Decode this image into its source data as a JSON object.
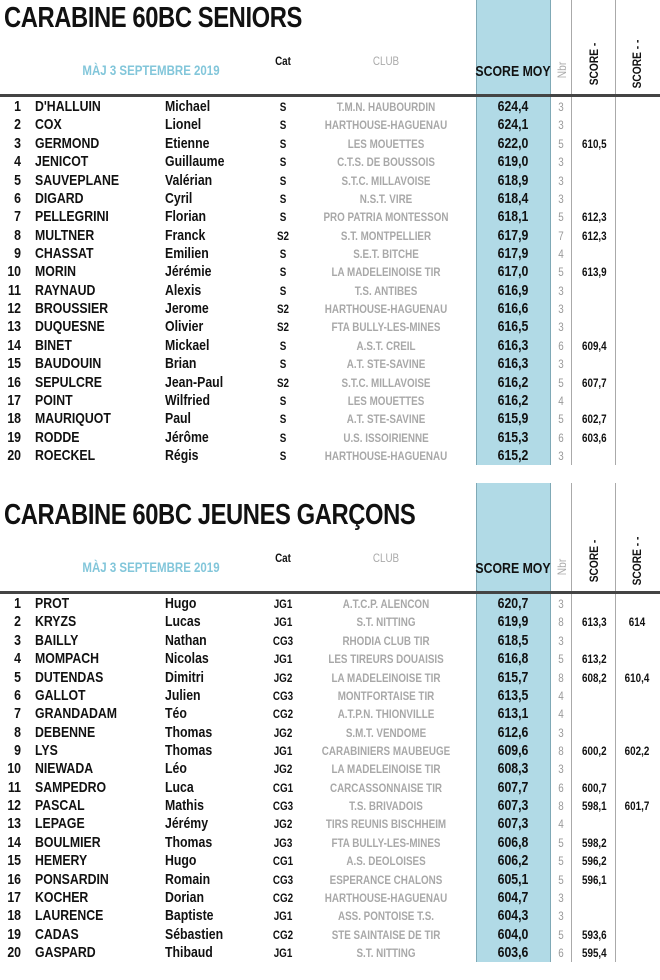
{
  "colors": {
    "score_column": "#b1dae6",
    "date": "#82c6da",
    "club": "#a8a8a8"
  },
  "header": {
    "date": "MÀJ 3 SEPTEMBRE 2019",
    "cat": "Cat",
    "club": "CLUB",
    "score_moy": "SCORE MOY",
    "nbr": "Nbr",
    "score_1": "SCORE -",
    "score_2": "SCORE - -"
  },
  "sections": [
    {
      "title": "CARABINE 60BC SENIORS",
      "rows": [
        [
          "1",
          "D'HALLUIN",
          "Michael",
          "S",
          "T.M.N. HAUBOURDIN",
          "624,4",
          "3",
          "",
          ""
        ],
        [
          "2",
          "COX",
          "Lionel",
          "S",
          "HARTHOUSE-HAGUENAU",
          "624,1",
          "3",
          "",
          ""
        ],
        [
          "3",
          "GERMOND",
          "Etienne",
          "S",
          "LES MOUETTES",
          "622,0",
          "5",
          "610,5",
          ""
        ],
        [
          "4",
          "JENICOT",
          "Guillaume",
          "S",
          "C.T.S. DE BOUSSOIS",
          "619,0",
          "3",
          "",
          ""
        ],
        [
          "5",
          "SAUVEPLANE",
          "Valérian",
          "S",
          "S.T.C. MILLAVOISE",
          "618,9",
          "3",
          "",
          ""
        ],
        [
          "6",
          "DIGARD",
          "Cyril",
          "S",
          "N.S.T. VIRE",
          "618,4",
          "3",
          "",
          ""
        ],
        [
          "7",
          "PELLEGRINI",
          "Florian",
          "S",
          "PRO PATRIA MONTESSON",
          "618,1",
          "5",
          "612,3",
          ""
        ],
        [
          "8",
          "MULTNER",
          "Franck",
          "S2",
          "S.T. MONTPELLIER",
          "617,9",
          "7",
          "612,3",
          ""
        ],
        [
          "9",
          "CHASSAT",
          "Emilien",
          "S",
          "S.E.T. BITCHE",
          "617,9",
          "4",
          "",
          ""
        ],
        [
          "10",
          "MORIN",
          "Jérémie",
          "S",
          "LA MADELEINOISE TIR",
          "617,0",
          "5",
          "613,9",
          ""
        ],
        [
          "11",
          "RAYNAUD",
          "Alexis",
          "S",
          "T.S. ANTIBES",
          "616,9",
          "3",
          "",
          ""
        ],
        [
          "12",
          "BROUSSIER",
          "Jerome",
          "S2",
          "HARTHOUSE-HAGUENAU",
          "616,6",
          "3",
          "",
          ""
        ],
        [
          "13",
          "DUQUESNE",
          "Olivier",
          "S2",
          "FTA BULLY-LES-MINES",
          "616,5",
          "3",
          "",
          ""
        ],
        [
          "14",
          "BINET",
          "Mickael",
          "S",
          "A.S.T. CREIL",
          "616,3",
          "6",
          "609,4",
          ""
        ],
        [
          "15",
          "BAUDOUIN",
          "Brian",
          "S",
          "A.T. STE-SAVINE",
          "616,3",
          "3",
          "",
          ""
        ],
        [
          "16",
          "SEPULCRE",
          "Jean-Paul",
          "S2",
          "S.T.C. MILLAVOISE",
          "616,2",
          "5",
          "607,7",
          ""
        ],
        [
          "17",
          "POINT",
          "Wilfried",
          "S",
          "LES MOUETTES",
          "616,2",
          "4",
          "",
          ""
        ],
        [
          "18",
          "MAURIQUOT",
          "Paul",
          "S",
          "A.T. STE-SAVINE",
          "615,9",
          "5",
          "602,7",
          ""
        ],
        [
          "19",
          "RODDE",
          "Jérôme",
          "S",
          "U.S. ISSOIRIENNE",
          "615,3",
          "6",
          "603,6",
          ""
        ],
        [
          "20",
          "ROECKEL",
          "Régis",
          "S",
          "HARTHOUSE-HAGUENAU",
          "615,2",
          "3",
          "",
          ""
        ]
      ]
    },
    {
      "title": "CARABINE 60BC JEUNES GARÇONS",
      "rows": [
        [
          "1",
          "PROT",
          "Hugo",
          "JG1",
          "A.T.C.P. ALENCON",
          "620,7",
          "3",
          "",
          ""
        ],
        [
          "2",
          "KRYZS",
          "Lucas",
          "JG1",
          "S.T. NITTING",
          "619,9",
          "8",
          "613,3",
          "614"
        ],
        [
          "3",
          "BAILLY",
          "Nathan",
          "CG3",
          "RHODIA CLUB TIR",
          "618,5",
          "3",
          "",
          ""
        ],
        [
          "4",
          "MOMPACH",
          "Nicolas",
          "JG1",
          "LES TIREURS DOUAISIS",
          "616,8",
          "5",
          "613,2",
          ""
        ],
        [
          "5",
          "DUTENDAS",
          "Dimitri",
          "JG2",
          "LA MADELEINOISE TIR",
          "615,7",
          "8",
          "608,2",
          "610,4"
        ],
        [
          "6",
          "GALLOT",
          "Julien",
          "CG3",
          "MONTFORTAISE TIR",
          "613,5",
          "4",
          "",
          ""
        ],
        [
          "7",
          "GRANDADAM",
          "Téo",
          "CG2",
          "A.T.P.N. THIONVILLE",
          "613,1",
          "4",
          "",
          ""
        ],
        [
          "8",
          "DEBENNE",
          "Thomas",
          "JG2",
          "S.M.T. VENDOME",
          "612,6",
          "3",
          "",
          ""
        ],
        [
          "9",
          "LYS",
          "Thomas",
          "JG1",
          "CARABINIERS MAUBEUGE",
          "609,6",
          "8",
          "600,2",
          "602,2"
        ],
        [
          "10",
          "NIEWADA",
          "Léo",
          "JG2",
          "LA MADELEINOISE TIR",
          "608,3",
          "3",
          "",
          ""
        ],
        [
          "11",
          "SAMPEDRO",
          "Luca",
          "CG1",
          "CARCASSONNAISE TIR",
          "607,7",
          "6",
          "600,7",
          ""
        ],
        [
          "12",
          "PASCAL",
          "Mathis",
          "CG3",
          "T.S. BRIVADOIS",
          "607,3",
          "8",
          "598,1",
          "601,7"
        ],
        [
          "13",
          "LEPAGE",
          "Jérémy",
          "JG2",
          "TIRS REUNIS BISCHHEIM",
          "607,3",
          "4",
          "",
          ""
        ],
        [
          "14",
          "BOULMIER",
          "Thomas",
          "JG3",
          "FTA BULLY-LES-MINES",
          "606,8",
          "5",
          "598,2",
          ""
        ],
        [
          "15",
          "HEMERY",
          "Hugo",
          "CG1",
          "A.S. DEOLOISES",
          "606,2",
          "5",
          "596,2",
          ""
        ],
        [
          "16",
          "PONSARDIN",
          "Romain",
          "CG3",
          "ESPERANCE CHALONS",
          "605,1",
          "5",
          "596,1",
          ""
        ],
        [
          "17",
          "KOCHER",
          "Dorian",
          "CG2",
          "HARTHOUSE-HAGUENAU",
          "604,7",
          "3",
          "",
          ""
        ],
        [
          "18",
          "LAURENCE",
          "Baptiste",
          "JG1",
          "ASS. PONTOISE T.S.",
          "604,3",
          "3",
          "",
          ""
        ],
        [
          "19",
          "CADAS",
          "Sébastien",
          "CG2",
          "STE SAINTAISE DE TIR",
          "604,0",
          "5",
          "593,6",
          ""
        ],
        [
          "20",
          "GASPARD",
          "Thibaud",
          "JG1",
          "S.T. NITTING",
          "603,6",
          "6",
          "595,4",
          ""
        ]
      ]
    }
  ]
}
